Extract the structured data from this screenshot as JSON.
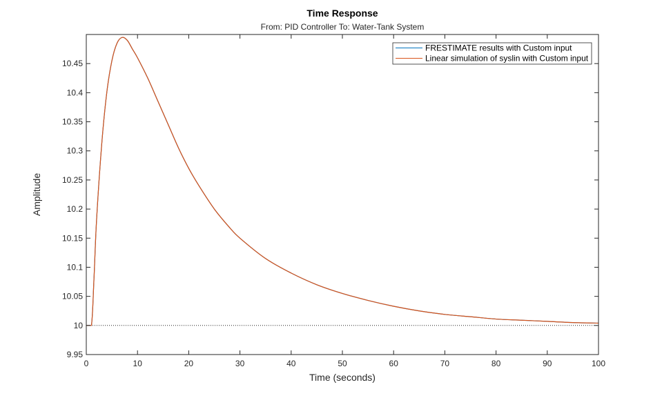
{
  "chart_data": {
    "type": "line",
    "title": "Time Response",
    "subtitle": "From: PID Controller  To: Water-Tank System",
    "xlabel": "Time (seconds)",
    "ylabel": "Amplitude",
    "xlim": [
      0,
      100
    ],
    "ylim": [
      9.95,
      10.5
    ],
    "xticks": [
      0,
      10,
      20,
      30,
      40,
      50,
      60,
      70,
      80,
      90,
      100
    ],
    "xtick_labels": [
      "0",
      "10",
      "20",
      "30",
      "40",
      "50",
      "60",
      "70",
      "80",
      "90",
      "100"
    ],
    "yticks": [
      9.95,
      10,
      10.05,
      10.1,
      10.15,
      10.2,
      10.25,
      10.3,
      10.35,
      10.4,
      10.45
    ],
    "ytick_labels": [
      "9.95",
      "10",
      "10.05",
      "10.1",
      "10.15",
      "10.2",
      "10.25",
      "10.3",
      "10.35",
      "10.4",
      "10.45"
    ],
    "grid": false,
    "legend_position": "top-right",
    "reference_line": {
      "y": 10,
      "style": "dotted",
      "color": "#000000"
    },
    "series": [
      {
        "name": "FRESTIMATE results with Custom input",
        "color": "#0072BD",
        "x": [
          0,
          1,
          1.5,
          2,
          3,
          4,
          5,
          6,
          7,
          8,
          9,
          10,
          12,
          14,
          16,
          18,
          20,
          22,
          25,
          28,
          30,
          35,
          40,
          45,
          50,
          55,
          60,
          65,
          70,
          75,
          80,
          85,
          90,
          95,
          100
        ],
        "y": [
          10,
          10,
          10.08,
          10.18,
          10.31,
          10.4,
          10.455,
          10.485,
          10.495,
          10.49,
          10.475,
          10.46,
          10.425,
          10.385,
          10.345,
          10.305,
          10.27,
          10.24,
          10.2,
          10.168,
          10.15,
          10.115,
          10.09,
          10.07,
          10.055,
          10.043,
          10.033,
          10.025,
          10.019,
          10.015,
          10.011,
          10.009,
          10.007,
          10.005,
          10.004
        ]
      },
      {
        "name": "Linear simulation of syslin with Custom input",
        "color": "#D95319",
        "x": [
          0,
          1,
          1.5,
          2,
          3,
          4,
          5,
          6,
          7,
          8,
          9,
          10,
          12,
          14,
          16,
          18,
          20,
          22,
          25,
          28,
          30,
          35,
          40,
          45,
          50,
          55,
          60,
          65,
          70,
          75,
          80,
          85,
          90,
          95,
          100
        ],
        "y": [
          10,
          10,
          10.08,
          10.18,
          10.31,
          10.4,
          10.455,
          10.485,
          10.495,
          10.49,
          10.475,
          10.46,
          10.425,
          10.385,
          10.345,
          10.305,
          10.27,
          10.24,
          10.2,
          10.168,
          10.15,
          10.115,
          10.09,
          10.07,
          10.055,
          10.043,
          10.033,
          10.025,
          10.019,
          10.015,
          10.011,
          10.009,
          10.007,
          10.005,
          10.004
        ]
      }
    ]
  }
}
